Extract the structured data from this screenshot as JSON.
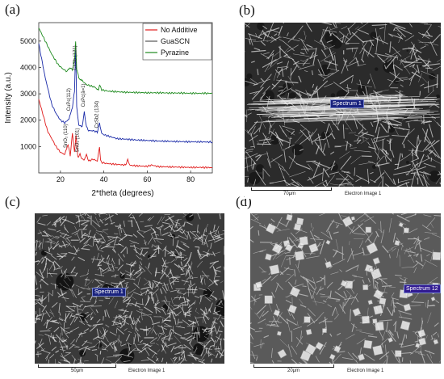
{
  "panels": {
    "a": "(a)",
    "b": "(b)",
    "c": "(c)",
    "d": "(d)"
  },
  "chart_data": {
    "type": "line",
    "ylabel": "Intensity (a.u.)",
    "xlabel": "2*theta (degrees)",
    "xlim": [
      10,
      90
    ],
    "ylim": [
      0,
      5700
    ],
    "xticks": [
      "20",
      "40",
      "60",
      "80"
    ],
    "yticks": [
      "1000",
      "2000",
      "3000",
      "4000",
      "5000"
    ],
    "legend_position": "top-right",
    "series": [
      {
        "name": "No Additive",
        "color": "#e01b1b",
        "x": [
          10,
          14,
          18,
          20,
          22,
          23.5,
          24.5,
          25.5,
          26.5,
          27.2,
          28,
          29,
          30,
          31,
          32,
          33,
          35,
          37,
          38,
          38.5,
          39,
          41,
          45,
          50,
          51,
          52,
          55,
          60,
          62,
          65,
          70,
          75,
          80,
          85,
          90
        ],
        "y": [
          2800,
          1600,
          1000,
          780,
          700,
          1100,
          650,
          1500,
          800,
          1450,
          600,
          700,
          520,
          500,
          700,
          450,
          520,
          450,
          1000,
          500,
          400,
          360,
          330,
          300,
          500,
          290,
          270,
          250,
          300,
          240,
          230,
          220,
          210,
          210,
          200
        ]
      },
      {
        "name": "GuaSCN",
        "color": "#1a2aa8",
        "x": [
          10,
          13,
          16,
          18,
          20,
          22,
          24,
          25.5,
          26.5,
          27,
          27.5,
          28.5,
          30,
          31,
          32,
          33,
          35,
          37,
          38,
          39,
          40,
          42,
          44,
          46,
          50,
          55,
          60,
          65,
          70,
          75,
          80,
          85,
          90
        ],
        "y": [
          4900,
          3600,
          2600,
          2250,
          2000,
          1900,
          2050,
          2500,
          3100,
          4750,
          2500,
          1800,
          1750,
          2300,
          1750,
          1600,
          1600,
          1550,
          1900,
          1500,
          1450,
          1400,
          1350,
          1300,
          1280,
          1250,
          1230,
          1210,
          1200,
          1190,
          1180,
          1180,
          1170
        ]
      },
      {
        "name": "Pyrazine",
        "color": "#1d8a1d",
        "x": [
          10,
          13,
          16,
          19,
          21,
          23,
          24.5,
          25.5,
          26.5,
          27,
          27.5,
          28.5,
          30,
          32,
          34,
          36,
          37.5,
          38,
          39,
          42,
          46,
          50,
          55,
          60,
          65,
          70,
          75,
          80,
          85,
          90
        ],
        "y": [
          5500,
          5000,
          4500,
          4100,
          3950,
          3850,
          4000,
          3900,
          4300,
          5000,
          3950,
          3600,
          3500,
          3350,
          3300,
          3250,
          3150,
          3350,
          3150,
          3100,
          3080,
          3060,
          3050,
          3040,
          3040,
          3030,
          3030,
          3020,
          3020,
          3020
        ]
      }
    ],
    "annotations": [
      "SnO₂ (110)",
      "SnO₂ (101)",
      "CuPc(112)",
      "CxSb (121)",
      "CuPc(ā=1)",
      "CxSb2 (134)"
    ]
  },
  "sem_b": {
    "spectrum": "Spectrum 1",
    "scale": "70µm",
    "image": "Electron Image 1"
  },
  "sem_c": {
    "spectrum": "Spectrum 1",
    "scale": "50µm",
    "image": "Electron Image 1"
  },
  "sem_d": {
    "spectrum": "Spectrum 12",
    "scale": "20µm",
    "image": "Electron Image 1"
  }
}
